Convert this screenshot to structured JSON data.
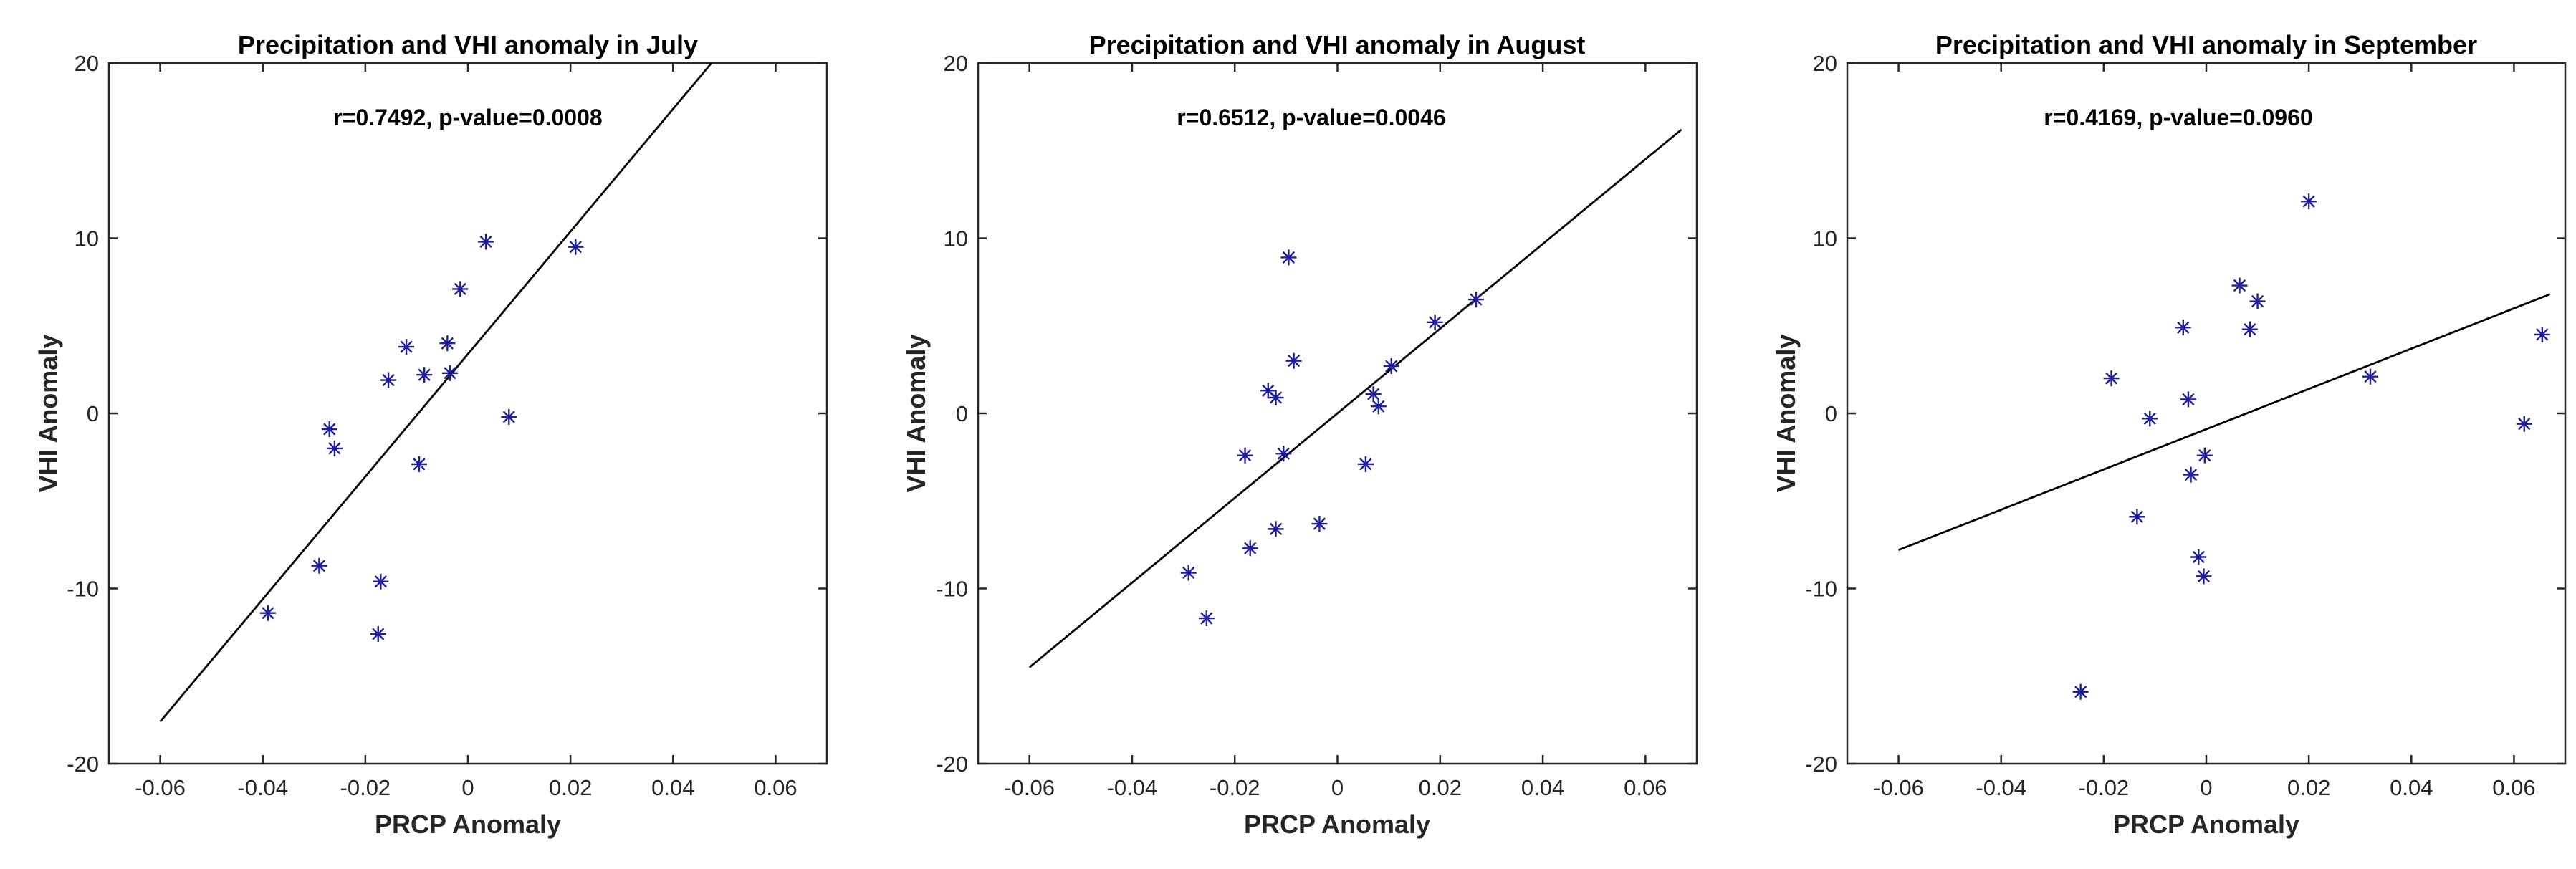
{
  "colors": {
    "axis": "#262626",
    "marker": "#1f1f9e",
    "fit_line": "#000000",
    "background": "#ffffff"
  },
  "chart_data": [
    {
      "type": "scatter",
      "title": "Precipitation and VHI anomaly in July",
      "annotation": "r=0.7492, p-value=0.0008",
      "xlabel": "PRCP Anomaly",
      "ylabel": "VHI Anomaly",
      "xlim": [
        -0.07,
        0.07
      ],
      "ylim": [
        -20,
        20
      ],
      "xticks": [
        -0.06,
        -0.04,
        -0.02,
        0,
        0.02,
        0.04,
        0.06
      ],
      "xtick_labels": [
        "-0.06",
        "-0.04",
        "-0.02",
        "0",
        "0.02",
        "0.04",
        "0.06"
      ],
      "yticks": [
        -20,
        -10,
        0,
        10,
        20
      ],
      "ytick_labels": [
        "-20",
        "-10",
        "0",
        "10",
        "20"
      ],
      "marker": "*",
      "points": [
        {
          "x": -0.039,
          "y": -11.4
        },
        {
          "x": -0.029,
          "y": -8.7
        },
        {
          "x": -0.027,
          "y": -0.9
        },
        {
          "x": -0.026,
          "y": -2.0
        },
        {
          "x": -0.0175,
          "y": -12.6
        },
        {
          "x": -0.017,
          "y": -9.6
        },
        {
          "x": -0.0155,
          "y": 1.9
        },
        {
          "x": -0.012,
          "y": 3.8
        },
        {
          "x": -0.0095,
          "y": -2.9
        },
        {
          "x": -0.0085,
          "y": 2.2
        },
        {
          "x": -0.004,
          "y": 4.0
        },
        {
          "x": -0.0035,
          "y": 2.3
        },
        {
          "x": -0.0015,
          "y": 7.1
        },
        {
          "x": 0.0035,
          "y": 9.8
        },
        {
          "x": 0.008,
          "y": -0.2
        },
        {
          "x": 0.021,
          "y": 9.5
        }
      ],
      "fit_line": {
        "x": [
          -0.06,
          0.0475
        ],
        "y": [
          -17.6,
          20
        ]
      }
    },
    {
      "type": "scatter",
      "title": "Precipitation and VHI anomaly in August",
      "annotation": "r=0.6512, p-value=0.0046",
      "xlabel": "PRCP Anomaly",
      "ylabel": "VHI Anomaly",
      "xlim": [
        -0.07,
        0.07
      ],
      "ylim": [
        -20,
        20
      ],
      "xticks": [
        -0.06,
        -0.04,
        -0.02,
        0,
        0.02,
        0.04,
        0.06
      ],
      "xtick_labels": [
        "-0.06",
        "-0.04",
        "-0.02",
        "0",
        "0.02",
        "0.04",
        "0.06"
      ],
      "yticks": [
        -20,
        -10,
        0,
        10,
        20
      ],
      "ytick_labels": [
        "-20",
        "-10",
        "0",
        "10",
        "20"
      ],
      "marker": "*",
      "points": [
        {
          "x": -0.029,
          "y": -9.1
        },
        {
          "x": -0.0255,
          "y": -11.7
        },
        {
          "x": -0.018,
          "y": -2.4
        },
        {
          "x": -0.017,
          "y": -7.7
        },
        {
          "x": -0.0135,
          "y": 1.3
        },
        {
          "x": -0.012,
          "y": 0.9
        },
        {
          "x": -0.012,
          "y": -6.6
        },
        {
          "x": -0.0105,
          "y": -2.3
        },
        {
          "x": -0.0095,
          "y": 8.9
        },
        {
          "x": -0.0085,
          "y": 3.0
        },
        {
          "x": -0.0035,
          "y": -6.3
        },
        {
          "x": 0.0055,
          "y": -2.9
        },
        {
          "x": 0.007,
          "y": 1.1
        },
        {
          "x": 0.008,
          "y": 0.4
        },
        {
          "x": 0.0105,
          "y": 2.7
        },
        {
          "x": 0.019,
          "y": 5.2
        },
        {
          "x": 0.027,
          "y": 6.5
        }
      ],
      "fit_line": {
        "x": [
          -0.06,
          0.067
        ],
        "y": [
          -14.5,
          16.2
        ]
      }
    },
    {
      "type": "scatter",
      "title": "Precipitation and VHI anomaly in September",
      "annotation": "r=0.4169, p-value=0.0960",
      "xlabel": "PRCP Anomaly",
      "ylabel": "VHI Anomaly",
      "xlim": [
        -0.07,
        0.07
      ],
      "ylim": [
        -20,
        20
      ],
      "xticks": [
        -0.06,
        -0.04,
        -0.02,
        0,
        0.02,
        0.04,
        0.06
      ],
      "xtick_labels": [
        "-0.06",
        "-0.04",
        "-0.02",
        "0",
        "0.02",
        "0.04",
        "0.06"
      ],
      "yticks": [
        -20,
        -10,
        0,
        10,
        20
      ],
      "ytick_labels": [
        "-20",
        "-10",
        "0",
        "10",
        "20"
      ],
      "marker": "*",
      "points": [
        {
          "x": -0.0245,
          "y": -15.9
        },
        {
          "x": -0.0185,
          "y": 2.0
        },
        {
          "x": -0.0135,
          "y": -5.9
        },
        {
          "x": -0.011,
          "y": -0.3
        },
        {
          "x": -0.0045,
          "y": 4.9
        },
        {
          "x": -0.0035,
          "y": 0.8
        },
        {
          "x": -0.003,
          "y": -3.5
        },
        {
          "x": -0.0015,
          "y": -8.2
        },
        {
          "x": -0.0005,
          "y": -9.3
        },
        {
          "x": -0.0003,
          "y": -2.4
        },
        {
          "x": 0.0065,
          "y": 7.3
        },
        {
          "x": 0.0085,
          "y": 4.8
        },
        {
          "x": 0.01,
          "y": 6.4
        },
        {
          "x": 0.02,
          "y": 12.1
        },
        {
          "x": 0.032,
          "y": 2.1
        },
        {
          "x": 0.062,
          "y": -0.6
        },
        {
          "x": 0.0655,
          "y": 4.5
        }
      ],
      "fit_line": {
        "x": [
          -0.06,
          0.067
        ],
        "y": [
          -7.8,
          6.8
        ]
      }
    }
  ]
}
